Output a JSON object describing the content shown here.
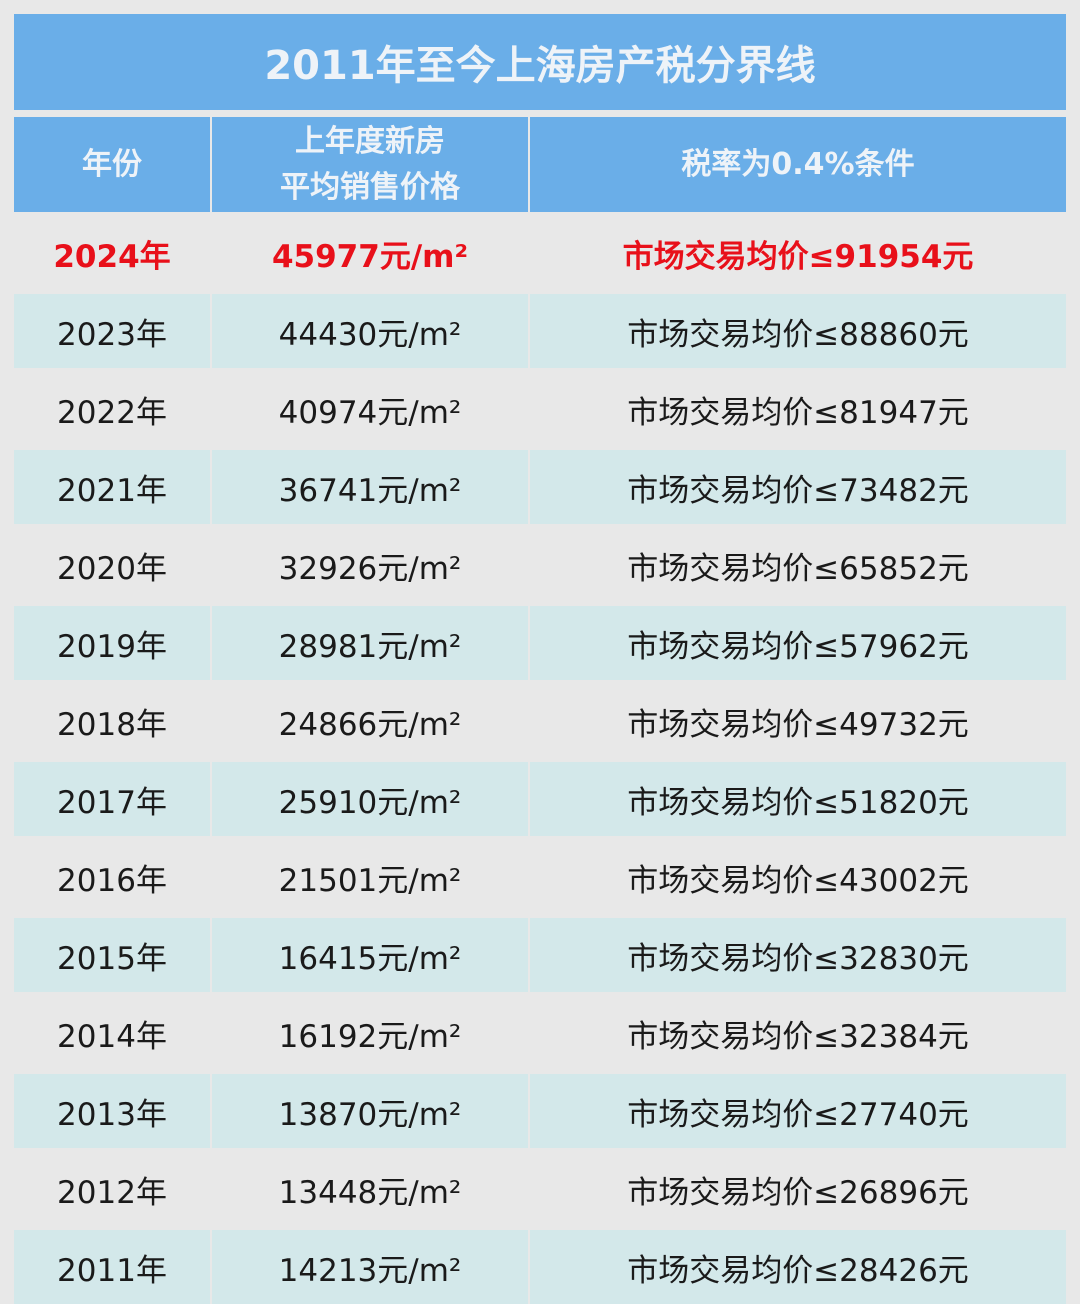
{
  "title": "2011年至今上海房产税分界线",
  "headers": [
    "年份",
    "上年度新房\n平均销售价格",
    "税率为0.4%条件"
  ],
  "colors": {
    "header_bg": "#6aaee8",
    "row_alt_bg": "#d3e8ea",
    "highlight": "#e8101a"
  },
  "rows": [
    {
      "year": "2024年",
      "price": "45977元/m²",
      "condition": "市场交易均价≤91954元",
      "highlight": true
    },
    {
      "year": "2023年",
      "price": "44430元/m²",
      "condition": "市场交易均价≤88860元"
    },
    {
      "year": "2022年",
      "price": "40974元/m²",
      "condition": "市场交易均价≤81947元"
    },
    {
      "year": "2021年",
      "price": "36741元/m²",
      "condition": "市场交易均价≤73482元"
    },
    {
      "year": "2020年",
      "price": "32926元/m²",
      "condition": "市场交易均价≤65852元"
    },
    {
      "year": "2019年",
      "price": "28981元/m²",
      "condition": "市场交易均价≤57962元"
    },
    {
      "year": "2018年",
      "price": "24866元/m²",
      "condition": "市场交易均价≤49732元"
    },
    {
      "year": "2017年",
      "price": "25910元/m²",
      "condition": "市场交易均价≤51820元"
    },
    {
      "year": "2016年",
      "price": "21501元/m²",
      "condition": "市场交易均价≤43002元"
    },
    {
      "year": "2015年",
      "price": "16415元/m²",
      "condition": "市场交易均价≤32830元"
    },
    {
      "year": "2014年",
      "price": "16192元/m²",
      "condition": "市场交易均价≤32384元"
    },
    {
      "year": "2013年",
      "price": "13870元/m²",
      "condition": "市场交易均价≤27740元"
    },
    {
      "year": "2012年",
      "price": "13448元/m²",
      "condition": "市场交易均价≤26896元"
    },
    {
      "year": "2011年",
      "price": "14213元/m²",
      "condition": "市场交易均价≤28426元"
    }
  ]
}
